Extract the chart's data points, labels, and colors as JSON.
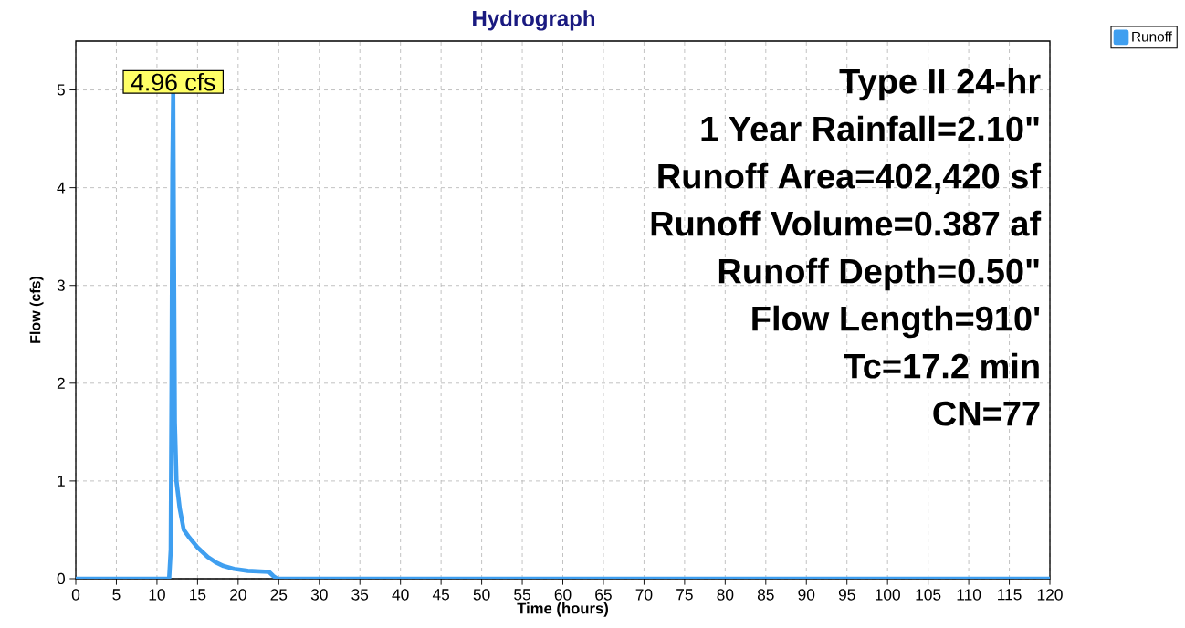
{
  "chart_data": {
    "type": "line",
    "title": "Hydrograph",
    "xlabel": "Time (hours)",
    "ylabel": "Flow (cfs)",
    "x": [
      0,
      11.5,
      11.7,
      11.8,
      11.9,
      12.0,
      12.1,
      12.2,
      12.4,
      12.8,
      13.3,
      14.0,
      15.0,
      16.3,
      17.2,
      18.2,
      19.5,
      21.2,
      23.8,
      24.3,
      24.8,
      120
    ],
    "series": [
      {
        "name": "Runoff",
        "color": "#3f9ff0",
        "values": [
          0,
          0,
          0.3,
          2.0,
          4.2,
          4.96,
          3.2,
          1.6,
          1.0,
          0.72,
          0.5,
          0.42,
          0.32,
          0.22,
          0.17,
          0.13,
          0.1,
          0.08,
          0.07,
          0.03,
          0,
          0
        ]
      }
    ],
    "xlim": [
      0,
      120
    ],
    "ylim": [
      0,
      5.5
    ],
    "xticks": [
      0,
      5,
      10,
      15,
      20,
      25,
      30,
      35,
      40,
      45,
      50,
      55,
      60,
      65,
      70,
      75,
      80,
      85,
      90,
      95,
      100,
      105,
      110,
      115,
      120
    ],
    "yticks": [
      0,
      1,
      2,
      3,
      4,
      5
    ],
    "grid": true,
    "legend": "top right",
    "line_style": "solid",
    "annotations": [
      {
        "text": "4.96 cfs",
        "x": 12.0,
        "y": 4.96
      },
      "Type II 24-hr",
      "1 Year Rainfall=2.10\"",
      "Runoff Area=402,420 sf",
      "Runoff Volume=0.387 af",
      "Runoff Depth=0.50\"",
      "Flow Length=910'",
      "Tc=17.2 min",
      "CN=77"
    ]
  }
}
